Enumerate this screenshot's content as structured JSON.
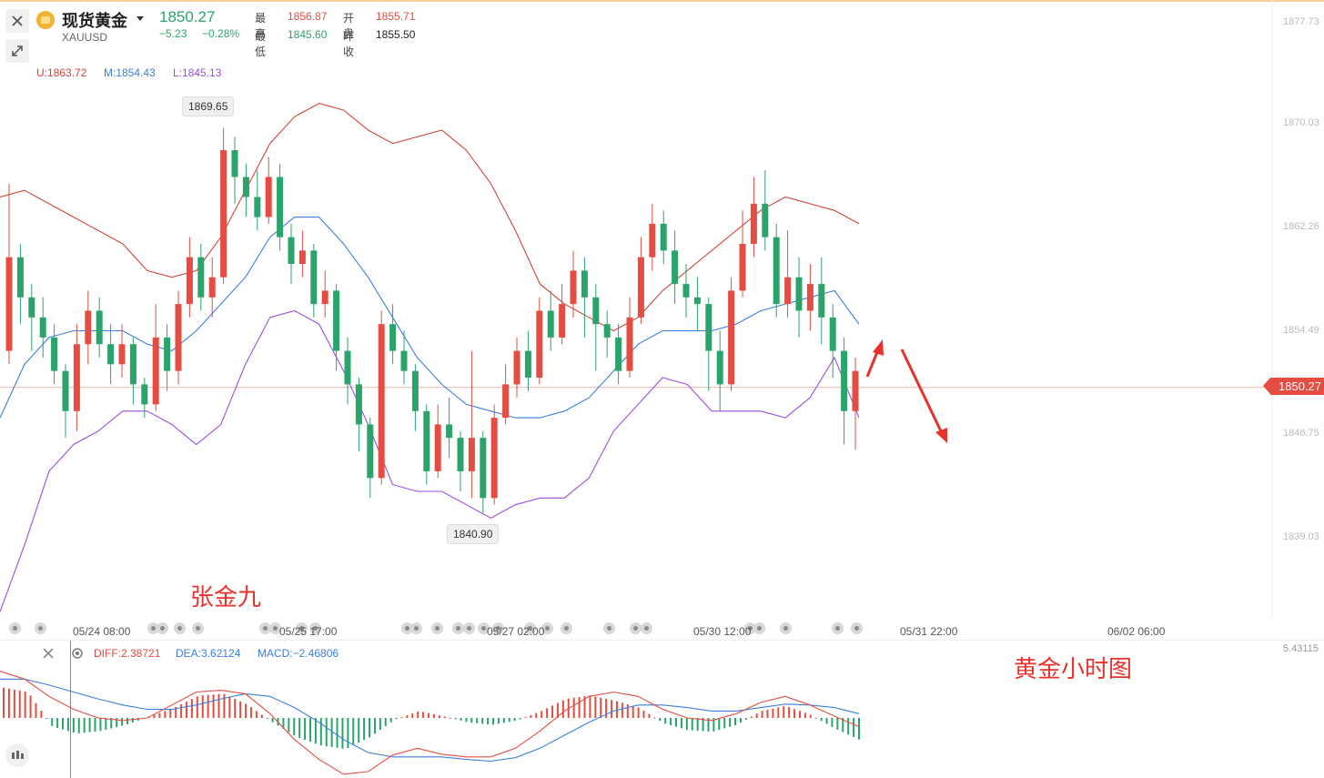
{
  "header": {
    "instrument_name": "现货黄金",
    "symbol": "XAUUSD",
    "last_price": "1850.27",
    "change": "−5.23",
    "change_pct": "−0.28%",
    "high_label": "最高",
    "high_value": "1856.87",
    "open_label": "开盘",
    "open_value": "1855.71",
    "low_label": "最低",
    "low_value": "1845.60",
    "prev_close_label": "昨收",
    "prev_close_value": "1855.50"
  },
  "toolbar": {
    "close_icon": "close-icon",
    "fullscreen_icon": "expand-icon"
  },
  "indicators": {
    "boll_upper": "U:1863.72",
    "boll_middle": "M:1854.43",
    "boll_lower": "L:1845.13",
    "macd_diff": "DIFF:2.38721",
    "macd_dea": "DEA:3.62124",
    "macd_value": "MACD:−2.46806"
  },
  "price_axis": {
    "ticks": [
      "1877.73",
      "1870.03",
      "1862.26",
      "1854.49",
      "1846.75",
      "1839.03"
    ],
    "current_price_tag": "1850.27",
    "macd_axis_label": "5.43115"
  },
  "time_axis": {
    "ticks": [
      "05/24 08:00",
      "05/25 17:00",
      "05/27 02:00",
      "05/30 12:00",
      "05/31 22:00",
      "06/02 06:00"
    ]
  },
  "callouts": {
    "max": "1869.65",
    "min": "1840.90"
  },
  "annotations": {
    "author": "张金九",
    "chart_caption": "黄金小时图"
  },
  "colors": {
    "up": "#e54d42",
    "down": "#2aa46b",
    "boll_upper": "#d0453b",
    "boll_middle": "#3a7fe0",
    "boll_lower": "#9b4fe0",
    "annotation": "#e8322c"
  },
  "chart_data": {
    "type": "candlestick",
    "y_range": [
      1836,
      1880
    ],
    "candles": [
      [
        1853.0,
        1860.0,
        1865.5,
        1852.0
      ],
      [
        1860.0,
        1857.0,
        1861.0,
        1855.0
      ],
      [
        1857.0,
        1855.5,
        1858.0,
        1853.0
      ],
      [
        1855.5,
        1854.0,
        1857.0,
        1852.5
      ],
      [
        1854.0,
        1851.5,
        1855.0,
        1850.5
      ],
      [
        1851.5,
        1848.5,
        1852.0,
        1846.5
      ],
      [
        1848.5,
        1853.5,
        1855.0,
        1847.0
      ],
      [
        1853.5,
        1856.0,
        1857.5,
        1852.0
      ],
      [
        1856.0,
        1853.5,
        1857.0,
        1852.5
      ],
      [
        1853.5,
        1852.0,
        1855.0,
        1850.5
      ],
      [
        1852.0,
        1853.5,
        1855.0,
        1851.0
      ],
      [
        1853.5,
        1850.5,
        1854.0,
        1849.0
      ],
      [
        1850.5,
        1849.0,
        1851.0,
        1848.0
      ],
      [
        1849.0,
        1854.0,
        1856.5,
        1848.5
      ],
      [
        1854.0,
        1851.5,
        1855.0,
        1850.0
      ],
      [
        1851.5,
        1856.5,
        1857.5,
        1850.5
      ],
      [
        1856.5,
        1860.0,
        1861.5,
        1855.5
      ],
      [
        1860.0,
        1857.0,
        1861.0,
        1856.0
      ],
      [
        1857.0,
        1858.5,
        1860.0,
        1855.5
      ],
      [
        1858.5,
        1868.0,
        1869.65,
        1858.0
      ],
      [
        1868.0,
        1866.0,
        1869.0,
        1864.0
      ],
      [
        1866.0,
        1864.5,
        1867.0,
        1863.0
      ],
      [
        1864.5,
        1863.0,
        1866.5,
        1862.0
      ],
      [
        1863.0,
        1866.0,
        1867.5,
        1862.5
      ],
      [
        1866.0,
        1861.5,
        1867.0,
        1860.5
      ],
      [
        1861.5,
        1859.5,
        1862.5,
        1858.0
      ],
      [
        1859.5,
        1860.5,
        1862.0,
        1858.5
      ],
      [
        1860.5,
        1856.5,
        1861.0,
        1855.5
      ],
      [
        1856.5,
        1857.5,
        1859.0,
        1855.5
      ],
      [
        1857.5,
        1853.0,
        1858.0,
        1851.5
      ],
      [
        1853.0,
        1850.5,
        1854.0,
        1849.0
      ],
      [
        1850.5,
        1847.5,
        1851.0,
        1845.5
      ],
      [
        1847.5,
        1843.5,
        1848.0,
        1842.0
      ],
      [
        1843.5,
        1855.0,
        1856.0,
        1843.0
      ],
      [
        1855.0,
        1853.0,
        1856.5,
        1852.0
      ],
      [
        1853.0,
        1851.5,
        1854.5,
        1850.5
      ],
      [
        1851.5,
        1848.5,
        1852.0,
        1847.0
      ],
      [
        1848.5,
        1844.0,
        1849.0,
        1843.0
      ],
      [
        1844.0,
        1847.5,
        1849.0,
        1843.5
      ],
      [
        1847.5,
        1846.5,
        1849.5,
        1845.0
      ],
      [
        1846.5,
        1844.0,
        1847.0,
        1842.5
      ],
      [
        1844.0,
        1846.5,
        1853.0,
        1842.0
      ],
      [
        1846.5,
        1842.0,
        1847.0,
        1840.9
      ],
      [
        1842.0,
        1848.0,
        1849.0,
        1841.5
      ],
      [
        1848.0,
        1850.5,
        1852.0,
        1847.5
      ],
      [
        1850.5,
        1853.0,
        1854.0,
        1849.5
      ],
      [
        1853.0,
        1851.0,
        1854.5,
        1850.0
      ],
      [
        1851.0,
        1856.0,
        1857.0,
        1850.5
      ],
      [
        1856.0,
        1854.0,
        1857.5,
        1853.0
      ],
      [
        1854.0,
        1856.5,
        1858.0,
        1853.5
      ],
      [
        1856.5,
        1859.0,
        1860.5,
        1855.5
      ],
      [
        1859.0,
        1857.0,
        1860.0,
        1854.0
      ],
      [
        1857.0,
        1855.0,
        1858.0,
        1851.5
      ],
      [
        1855.0,
        1854.0,
        1856.0,
        1852.5
      ],
      [
        1854.0,
        1851.5,
        1855.0,
        1850.5
      ],
      [
        1851.5,
        1855.5,
        1857.0,
        1851.0
      ],
      [
        1855.5,
        1860.0,
        1861.5,
        1855.0
      ],
      [
        1860.0,
        1862.5,
        1864.0,
        1859.0
      ],
      [
        1862.5,
        1860.5,
        1863.5,
        1859.5
      ],
      [
        1860.5,
        1858.0,
        1862.0,
        1856.5
      ],
      [
        1858.0,
        1857.0,
        1859.5,
        1855.5
      ],
      [
        1857.0,
        1856.5,
        1858.5,
        1854.5
      ],
      [
        1856.5,
        1853.0,
        1857.0,
        1850.0
      ],
      [
        1853.0,
        1850.5,
        1854.5,
        1848.5
      ],
      [
        1850.5,
        1857.5,
        1858.5,
        1850.0
      ],
      [
        1857.5,
        1861.0,
        1863.5,
        1857.0
      ],
      [
        1861.0,
        1864.0,
        1866.0,
        1860.0
      ],
      [
        1864.0,
        1861.5,
        1866.5,
        1860.5
      ],
      [
        1861.5,
        1856.5,
        1862.5,
        1855.5
      ],
      [
        1856.5,
        1858.5,
        1862.0,
        1855.5
      ],
      [
        1858.5,
        1856.0,
        1860.0,
        1854.0
      ],
      [
        1856.0,
        1858.0,
        1859.5,
        1854.5
      ],
      [
        1858.0,
        1855.5,
        1860.0,
        1853.5
      ],
      [
        1855.5,
        1853.0,
        1856.5,
        1851.0
      ],
      [
        1853.0,
        1848.5,
        1854.0,
        1846.0
      ],
      [
        1848.5,
        1851.5,
        1852.5,
        1845.6
      ]
    ],
    "bollinger": {
      "upper": [
        1864.5,
        1865.0,
        1864.0,
        1863.0,
        1862.0,
        1861.0,
        1859.0,
        1858.5,
        1859.0,
        1861.5,
        1865.0,
        1868.5,
        1870.5,
        1871.5,
        1871.0,
        1869.5,
        1868.5,
        1869.0,
        1869.5,
        1868.0,
        1865.5,
        1862.0,
        1858.0,
        1856.5,
        1855.5,
        1854.5,
        1855.5,
        1857.5,
        1859.0,
        1860.5,
        1862.0,
        1863.5,
        1864.5,
        1864.0,
        1863.5,
        1862.5
      ],
      "middle": [
        1848.0,
        1852.0,
        1854.0,
        1854.5,
        1854.5,
        1854.5,
        1853.5,
        1853.0,
        1854.5,
        1856.5,
        1858.5,
        1861.5,
        1863.0,
        1863.0,
        1861.0,
        1858.5,
        1855.5,
        1852.5,
        1850.5,
        1849.0,
        1848.5,
        1848.0,
        1848.0,
        1848.5,
        1849.5,
        1851.5,
        1853.5,
        1854.5,
        1854.5,
        1854.5,
        1855.0,
        1856.0,
        1856.5,
        1857.0,
        1857.5,
        1855.0
      ],
      "lower": [
        1833.5,
        1838.5,
        1844.0,
        1846.0,
        1847.0,
        1848.5,
        1848.5,
        1847.5,
        1846.0,
        1847.5,
        1852.0,
        1855.5,
        1856.0,
        1855.0,
        1851.5,
        1847.5,
        1843.0,
        1842.5,
        1842.5,
        1841.5,
        1840.5,
        1841.5,
        1842.0,
        1842.0,
        1843.5,
        1847.0,
        1849.0,
        1851.0,
        1850.5,
        1848.5,
        1848.5,
        1848.5,
        1848.0,
        1849.5,
        1852.5,
        1848.0
      ]
    },
    "macd": {
      "diff": [
        5.4,
        4.5,
        2.5,
        1.0,
        0.0,
        -0.3,
        0.0,
        1.5,
        3.0,
        3.2,
        2.8,
        0.5,
        -2.5,
        -4.8,
        -6.5,
        -6.2,
        -4.3,
        -3.5,
        -4.2,
        -4.5,
        -4.5,
        -3.5,
        -1.5,
        0.8,
        2.5,
        3.0,
        2.5,
        1.0,
        0.0,
        -0.3,
        0.5,
        1.8,
        2.5,
        1.5,
        0.2,
        -1.0
      ],
      "dea": [
        4.5,
        4.5,
        3.8,
        3.0,
        2.2,
        1.5,
        1.0,
        1.0,
        1.5,
        2.2,
        2.8,
        2.5,
        1.2,
        -0.5,
        -2.5,
        -4.0,
        -4.5,
        -4.5,
        -4.5,
        -4.8,
        -5.0,
        -4.6,
        -3.5,
        -2.0,
        -0.5,
        0.8,
        1.5,
        1.5,
        1.2,
        0.8,
        0.8,
        1.2,
        1.6,
        1.5,
        1.2,
        0.5
      ],
      "hist": [
        3.5,
        3.0,
        -1.0,
        -1.8,
        -1.5,
        -0.8,
        0.2,
        1.2,
        2.6,
        2.8,
        1.5,
        -0.5,
        -2.2,
        -3.2,
        -3.6,
        -2.2,
        -0.2,
        0.8,
        0.2,
        -0.5,
        -0.8,
        -0.3,
        0.8,
        2.2,
        2.6,
        2.0,
        1.2,
        -0.6,
        -1.4,
        -1.6,
        -0.8,
        0.8,
        1.4,
        0.4,
        -1.2,
        -2.5
      ]
    }
  }
}
